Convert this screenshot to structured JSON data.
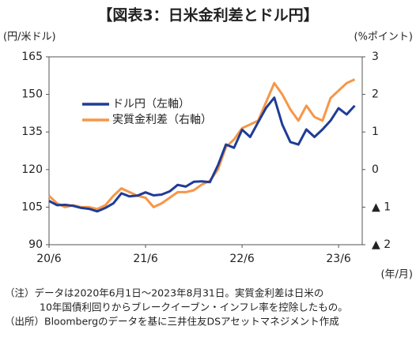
{
  "chart_data": {
    "type": "line",
    "title": "【図表3：日米金利差とドル円】",
    "y_label": "(円/米ドル)",
    "y2_label": "(%ポイント)",
    "x_label": "(年/月)",
    "x": [
      "20/6",
      "20/7",
      "20/8",
      "20/9",
      "20/10",
      "20/11",
      "20/12",
      "21/1",
      "21/2",
      "21/3",
      "21/4",
      "21/5",
      "21/6",
      "21/7",
      "21/8",
      "21/9",
      "21/10",
      "21/11",
      "21/12",
      "22/1",
      "22/2",
      "22/3",
      "22/4",
      "22/5",
      "22/6",
      "22/7",
      "22/8",
      "22/9",
      "22/10",
      "22/11",
      "22/12",
      "23/1",
      "23/2",
      "23/3",
      "23/4",
      "23/5",
      "23/6",
      "23/7",
      "23/8"
    ],
    "xticks": [
      "20/6",
      "21/6",
      "22/6",
      "23/6"
    ],
    "ylim": [
      90,
      165
    ],
    "yticks": [
      90,
      105,
      120,
      135,
      150,
      165
    ],
    "y2lim": [
      -2,
      3
    ],
    "y2ticks": [
      {
        "value": -2,
        "label": "▲ 2"
      },
      {
        "value": -1,
        "label": "▲ 1"
      },
      0,
      1,
      2,
      3
    ],
    "series": [
      {
        "name": "ドル円（左軸）",
        "color": "#1f3c96",
        "values": [
          107.5,
          105.8,
          105.9,
          105.5,
          104.7,
          104.3,
          103.3,
          104.7,
          106.5,
          110.5,
          109.3,
          109.6,
          110.9,
          109.7,
          110.0,
          111.3,
          113.9,
          113.2,
          115.1,
          115.3,
          115.0,
          121.7,
          130.0,
          128.7,
          135.9,
          133.0,
          138.9,
          144.7,
          148.7,
          138.0,
          131.0,
          130.0,
          136.0,
          133.0,
          136.0,
          139.5,
          144.5,
          142.0,
          145.5
        ]
      },
      {
        "name": "実質金利差（右軸）",
        "color": "#f79646",
        "axis": "y2",
        "values": [
          -0.7,
          -0.9,
          -1.0,
          -0.95,
          -1.0,
          -1.0,
          -1.05,
          -0.95,
          -0.7,
          -0.5,
          -0.6,
          -0.7,
          -0.75,
          -1.0,
          -0.9,
          -0.75,
          -0.6,
          -0.6,
          -0.55,
          -0.4,
          -0.3,
          0.0,
          0.6,
          0.8,
          1.1,
          1.2,
          1.3,
          1.8,
          2.3,
          2.0,
          1.6,
          1.3,
          1.7,
          1.4,
          1.3,
          1.9,
          2.1,
          2.3,
          2.4
        ]
      }
    ],
    "notes": [
      "（注）データは2020年6月1日～2023年8月31日。実質金利差は日米の",
      "10年国債利回りからブレークイーブン・インフレ率を控除したもの。",
      "（出所）Bloombergのデータを基に三井住友DSアセットマネジメント作成"
    ]
  }
}
